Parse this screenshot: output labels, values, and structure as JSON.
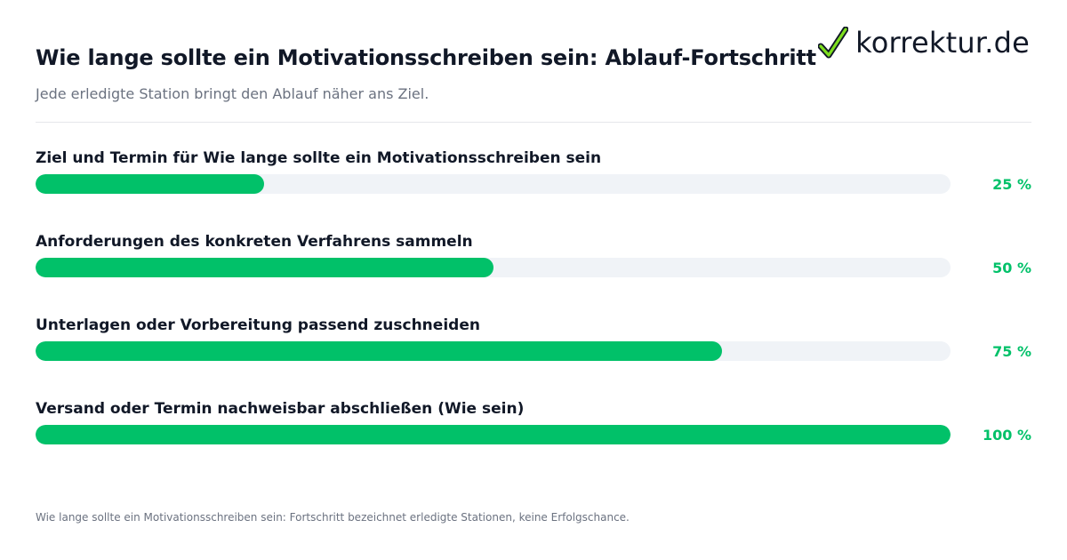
{
  "header": {
    "title": "Wie lange sollte ein Motivationsschreiben sein: Ablauf-Fortschritt",
    "subtitle": "Jede erledigte Station bringt den Ablauf näher ans Ziel.",
    "brand_name": "korrektur.de",
    "brand_icon": "checkmark-icon"
  },
  "chart_data": {
    "type": "bar",
    "orientation": "horizontal",
    "categories": [
      "Ziel und Termin für Wie lange sollte ein Motivationsschreiben sein",
      "Anforderungen des konkreten Verfahrens sammeln",
      "Unterlagen oder Vorbereitung passend zuschneiden",
      "Versand oder Termin nachweisbar abschließen (Wie sein)"
    ],
    "values": [
      25,
      50,
      75,
      100
    ],
    "value_labels": [
      "25 %",
      "50 %",
      "75 %",
      "100 %"
    ],
    "xlim": [
      0,
      100
    ],
    "title": "Wie lange sollte ein Motivationsschreiben sein: Ablauf-Fortschritt",
    "subtitle": "Jede erledigte Station bringt den Ablauf näher ans Ziel.",
    "grid": false
  },
  "footnote": "Wie lange sollte ein Motivationsschreiben sein: Fortschritt bezeichnet erledigte Stationen, keine Erfolgschance.",
  "colors": {
    "accent": "#01c169",
    "track": "#f0f3f7",
    "text": "#111827",
    "muted": "#6b7280"
  }
}
